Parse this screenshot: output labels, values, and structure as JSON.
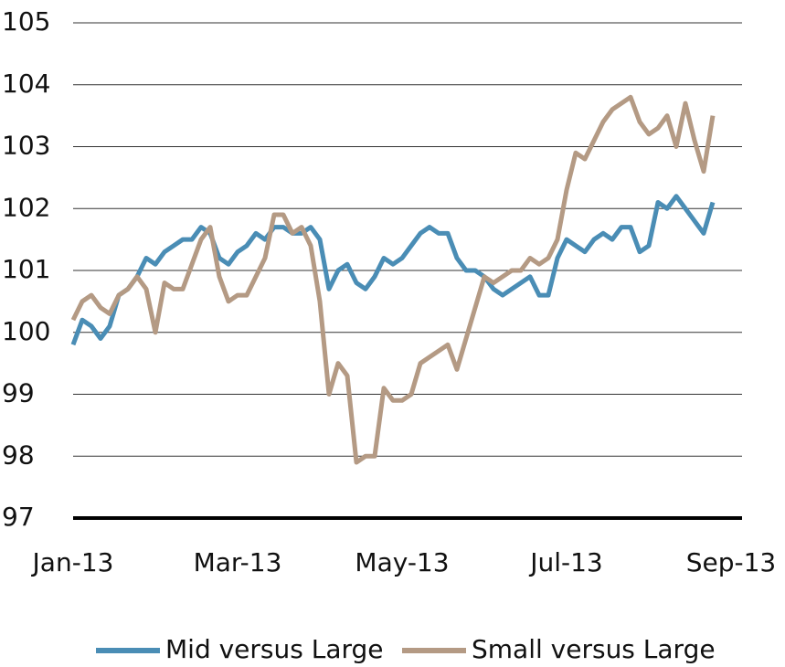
{
  "chart_data": {
    "type": "line",
    "categories": [
      "Jan-13",
      null,
      null,
      null,
      null,
      null,
      null,
      null,
      null,
      null,
      null,
      null,
      null,
      null,
      null,
      null,
      null,
      null,
      "Mar-13",
      null,
      null,
      null,
      null,
      null,
      null,
      null,
      null,
      null,
      null,
      null,
      null,
      null,
      null,
      null,
      null,
      null,
      "May-13",
      null,
      null,
      null,
      null,
      null,
      null,
      null,
      null,
      null,
      null,
      null,
      null,
      null,
      null,
      null,
      null,
      null,
      "Jul-13",
      null,
      null,
      null,
      null,
      null,
      null,
      null,
      null,
      null,
      null,
      null,
      null,
      null,
      null,
      null,
      null,
      null,
      "Sep-13"
    ],
    "series": [
      {
        "name": "Mid versus Large",
        "color": "#4a8db5",
        "values": [
          99.8,
          100.2,
          100.1,
          99.9,
          100.1,
          100.6,
          100.7,
          100.9,
          101.2,
          101.1,
          101.3,
          101.4,
          101.5,
          101.5,
          101.7,
          101.6,
          101.2,
          101.1,
          101.3,
          101.4,
          101.6,
          101.5,
          101.7,
          101.7,
          101.6,
          101.6,
          101.7,
          101.5,
          100.7,
          101.0,
          101.1,
          100.8,
          100.7,
          100.9,
          101.2,
          101.1,
          101.2,
          101.4,
          101.6,
          101.7,
          101.6,
          101.6,
          101.2,
          101.0,
          101.0,
          100.9,
          100.7,
          100.6,
          100.7,
          100.8,
          100.9,
          100.6,
          100.6,
          101.2,
          101.5,
          101.4,
          101.3,
          101.5,
          101.6,
          101.5,
          101.7,
          101.7,
          101.3,
          101.4,
          102.1,
          102.0,
          102.2,
          102.0,
          101.8,
          101.6,
          102.1,
          null,
          null
        ]
      },
      {
        "name": "Small versus Large",
        "color": "#b49a84",
        "values": [
          100.2,
          100.5,
          100.6,
          100.4,
          100.3,
          100.6,
          100.7,
          100.9,
          100.7,
          100.0,
          100.8,
          100.7,
          100.7,
          101.1,
          101.5,
          101.7,
          100.9,
          100.5,
          100.6,
          100.6,
          100.9,
          101.2,
          101.9,
          101.9,
          101.6,
          101.7,
          101.4,
          100.5,
          99.0,
          99.5,
          99.3,
          97.9,
          98.0,
          98.0,
          99.1,
          98.9,
          98.9,
          99.0,
          99.5,
          99.6,
          99.7,
          99.8,
          99.4,
          99.9,
          100.4,
          100.9,
          100.8,
          100.9,
          101.0,
          101.0,
          101.2,
          101.1,
          101.2,
          101.5,
          102.3,
          102.9,
          102.8,
          103.1,
          103.4,
          103.6,
          103.7,
          103.8,
          103.4,
          103.2,
          103.3,
          103.5,
          103.0,
          103.7,
          103.1,
          102.6,
          103.5,
          null,
          null
        ]
      }
    ],
    "ylim": [
      97,
      105
    ],
    "yticks": [
      97,
      98,
      99,
      100,
      101,
      102,
      103,
      104,
      105
    ],
    "grid": true
  }
}
